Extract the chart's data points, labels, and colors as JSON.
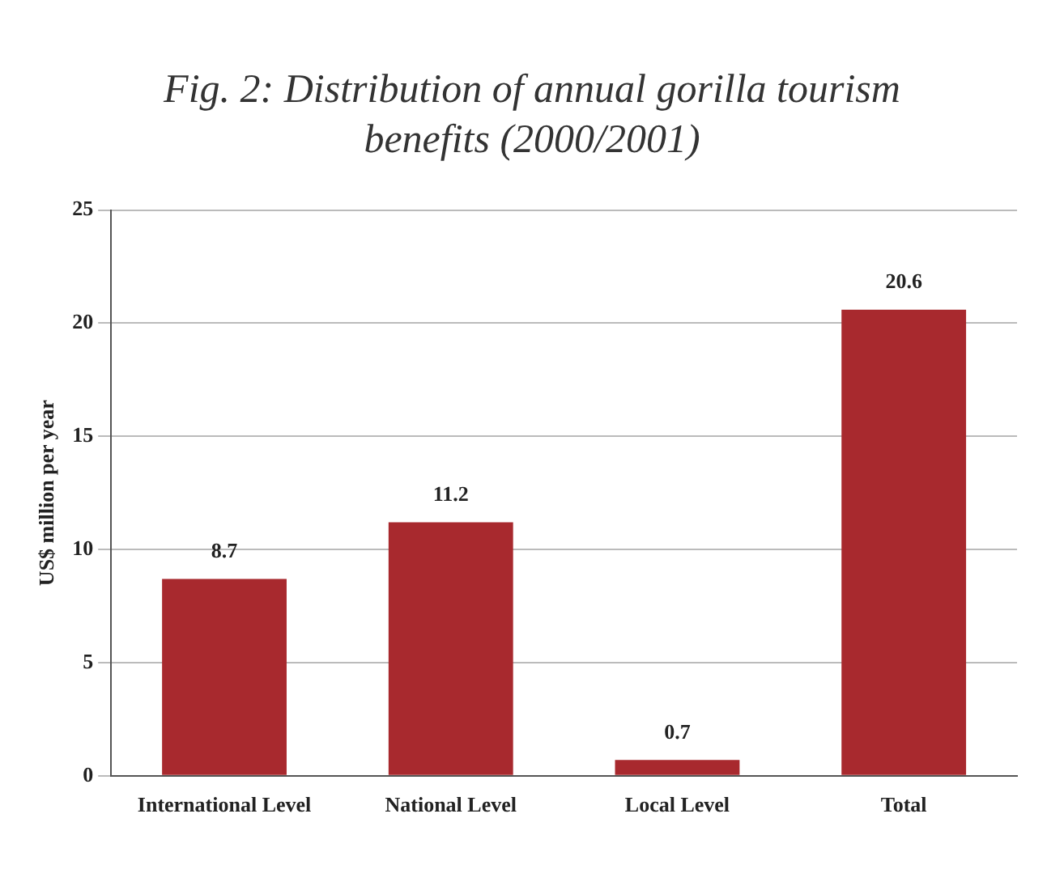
{
  "chart_data": {
    "type": "bar",
    "title": "Fig. 2: Distribution of annual gorilla tourism benefits (2000/2001)",
    "ylabel": "US$ million per year",
    "categories": [
      "International Level",
      "National Level",
      "Local Level",
      "Total"
    ],
    "values": [
      8.7,
      11.2,
      0.7,
      20.6
    ],
    "color": "#a8292e",
    "ylim": [
      0,
      25
    ],
    "yticks": [
      0,
      5,
      10,
      15,
      20,
      25
    ],
    "grid": "y",
    "data_labels": true
  }
}
